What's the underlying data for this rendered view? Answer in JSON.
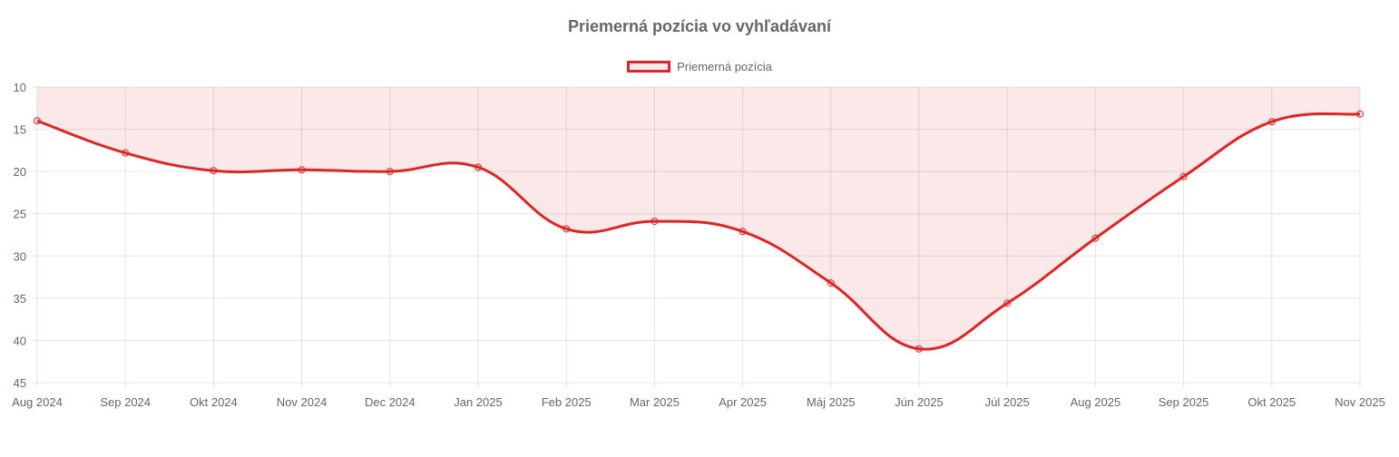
{
  "chart_data": {
    "type": "line",
    "title": "Priemerná pozícia vo vyhľadávaní",
    "xlabel": "",
    "ylabel": "",
    "y_reversed": true,
    "ylim": [
      10,
      45
    ],
    "y_ticks": [
      10,
      15,
      20,
      25,
      30,
      35,
      40,
      45
    ],
    "grid": true,
    "legend_position": "top",
    "categories": [
      "Aug 2024",
      "Sep 2024",
      "Okt 2024",
      "Nov 2024",
      "Dec 2024",
      "Jan 2025",
      "Feb 2025",
      "Mar 2025",
      "Apr 2025",
      "Máj 2025",
      "Jún 2025",
      "Júl 2025",
      "Aug 2025",
      "Sep 2025",
      "Okt 2025",
      "Nov 2025"
    ],
    "series": [
      {
        "name": "Priemerná pozícia",
        "color": "#dc2626",
        "fill": "rgba(220,38,38,0.1)",
        "values": [
          14.0,
          17.8,
          19.9,
          19.8,
          20.0,
          19.5,
          26.8,
          25.9,
          27.1,
          33.2,
          41.0,
          35.6,
          27.9,
          20.6,
          14.1,
          13.2
        ]
      }
    ]
  },
  "chart": {
    "title": "Priemerná pozícia vo vyhľadávaní",
    "legend_label": "Priemerná pozícia"
  }
}
